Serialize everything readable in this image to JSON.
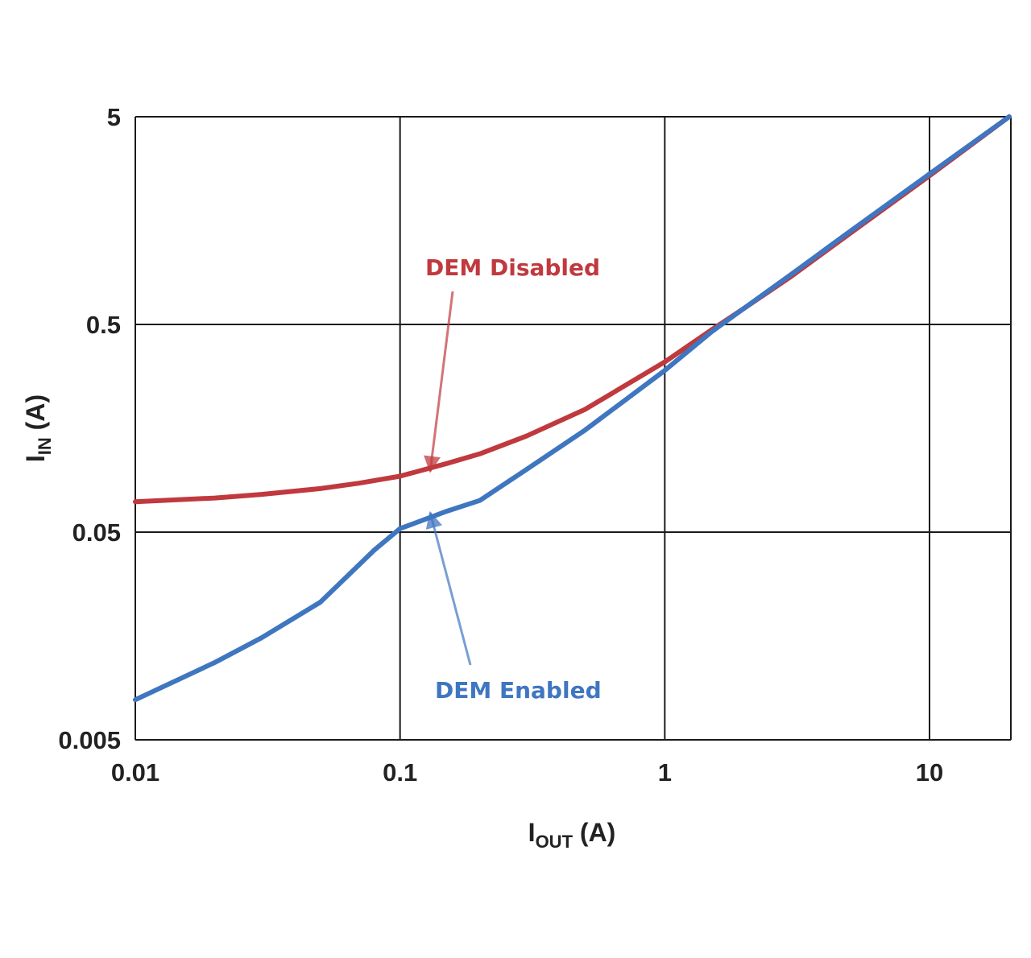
{
  "chart_data": {
    "type": "line",
    "xlabel": {
      "main": "I",
      "sub": "OUT",
      "unit": " (A)"
    },
    "ylabel": {
      "main": "I",
      "sub": "IN",
      "unit": " (A)"
    },
    "x_scale": "log",
    "y_scale": "log",
    "xlim": [
      0.01,
      20
    ],
    "ylim": [
      0.005,
      5
    ],
    "x_ticks": [
      0.01,
      0.1,
      1,
      10
    ],
    "x_tick_labels": [
      "0.01",
      "0.1",
      "1",
      "10"
    ],
    "y_ticks": [
      0.005,
      0.05,
      0.5,
      5
    ],
    "y_tick_labels": [
      "0.005",
      "0.05",
      "0.5",
      "5"
    ],
    "grid": true,
    "series": [
      {
        "name": "DEM Disabled",
        "color": "#c0393e",
        "x": [
          0.01,
          0.02,
          0.03,
          0.05,
          0.07,
          0.1,
          0.15,
          0.2,
          0.3,
          0.5,
          1,
          1.5,
          2,
          3,
          5,
          10,
          20
        ],
        "y": [
          0.07,
          0.073,
          0.076,
          0.081,
          0.086,
          0.093,
          0.107,
          0.119,
          0.145,
          0.195,
          0.33,
          0.47,
          0.6,
          0.85,
          1.37,
          2.6,
          5.0
        ]
      },
      {
        "name": "DEM Enabled",
        "color": "#3f76c0",
        "x": [
          0.01,
          0.02,
          0.03,
          0.05,
          0.08,
          0.1,
          0.15,
          0.2,
          0.3,
          0.5,
          1,
          1.5,
          2,
          3,
          5,
          10,
          20
        ],
        "y": [
          0.0078,
          0.0118,
          0.0155,
          0.023,
          0.041,
          0.052,
          0.063,
          0.071,
          0.1,
          0.155,
          0.3,
          0.46,
          0.6,
          0.87,
          1.4,
          2.65,
          5.0
        ]
      }
    ],
    "annotations": [
      {
        "text": "DEM Disabled",
        "color": "#c0393e",
        "series": "DEM Disabled",
        "points_to": [
          0.13,
          0.098
        ]
      },
      {
        "text": "DEM Enabled",
        "color": "#3f76c0",
        "series": "DEM Enabled",
        "points_to": [
          0.13,
          0.062
        ]
      }
    ]
  }
}
